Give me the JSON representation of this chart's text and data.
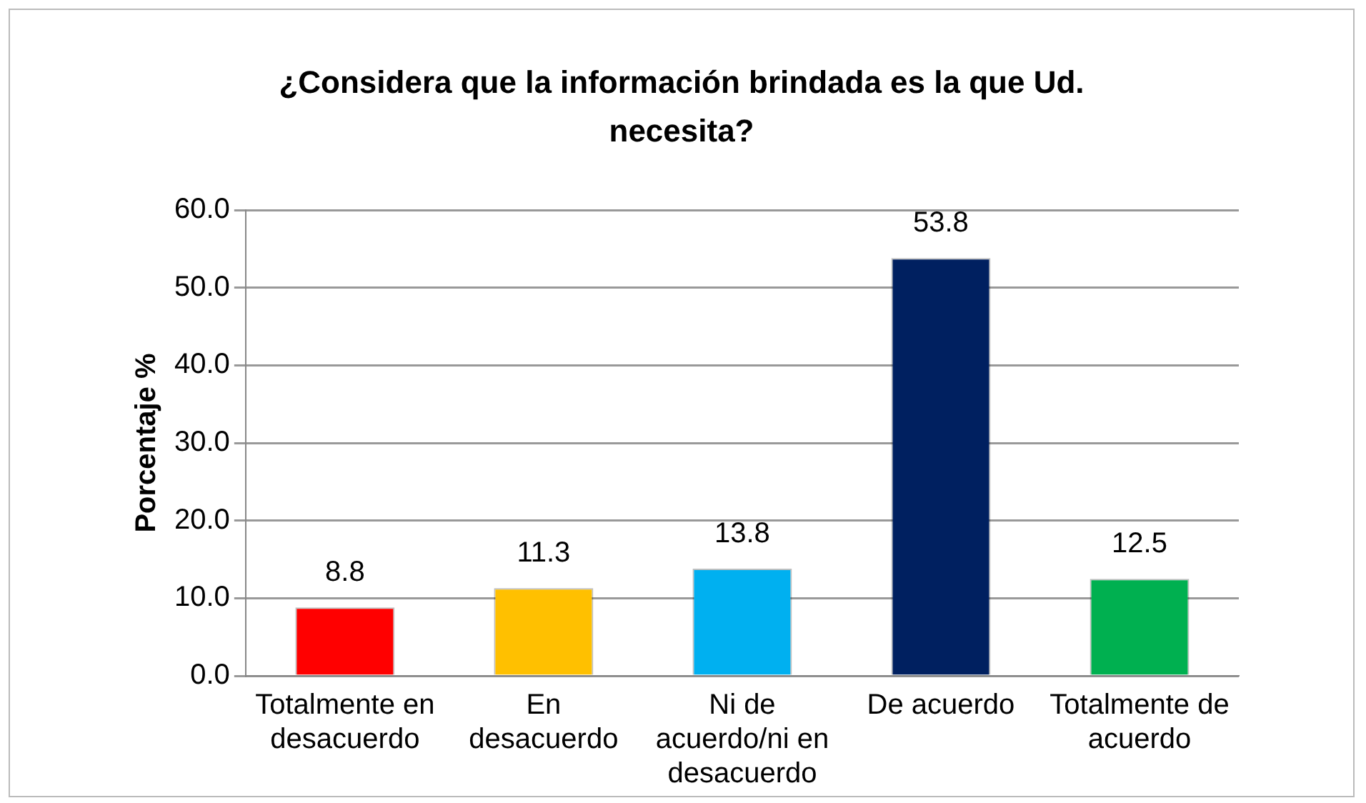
{
  "chart_data": {
    "type": "bar",
    "title": "¿Considera que la información brindada es la que Ud. necesita?",
    "ylabel": "Porcentaje %",
    "categories": [
      "Totalmente en desacuerdo",
      "En desacuerdo",
      "Ni de acuerdo/ni en desacuerdo",
      "De acuerdo",
      "Totalmente de acuerdo"
    ],
    "values": [
      8.8,
      11.3,
      13.8,
      53.8,
      12.5
    ],
    "colors": [
      "#ff0000",
      "#ffc000",
      "#00b0f0",
      "#002060",
      "#00b050"
    ],
    "ylim": [
      0,
      60
    ],
    "yticks": [
      {
        "value": 0,
        "label": "0.0"
      },
      {
        "value": 10,
        "label": "10.0"
      },
      {
        "value": 20,
        "label": "20.0"
      },
      {
        "value": 30,
        "label": "30.0"
      },
      {
        "value": 40,
        "label": "40.0"
      },
      {
        "value": 50,
        "label": "50.0"
      },
      {
        "value": 60,
        "label": "60.0"
      }
    ],
    "grid": "y",
    "legend": false,
    "data_labels": true
  }
}
